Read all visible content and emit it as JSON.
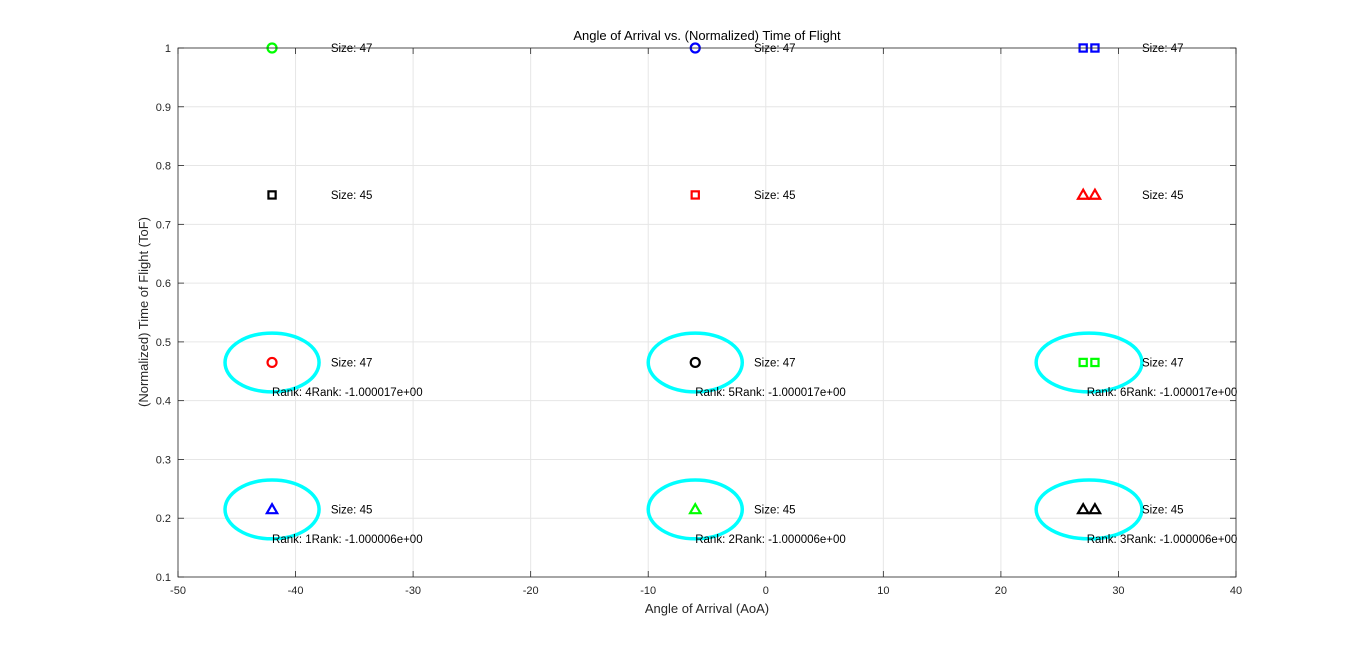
{
  "chart_data": {
    "type": "scatter",
    "title": "Angle of Arrival vs. (Normalized) Time of Flight",
    "xlabel": "Angle of Arrival (AoA)",
    "ylabel": "(Normalized) Time of Flight (ToF)",
    "xlim": [
      -50,
      40
    ],
    "ylim": [
      0.1,
      1
    ],
    "xticks": [
      -50,
      -40,
      -30,
      -20,
      -10,
      0,
      10,
      20,
      30,
      40
    ],
    "xtick_labels": [
      "-50",
      "-40",
      "-30",
      "-20",
      "-10",
      "0",
      "10",
      "20",
      "30",
      "40"
    ],
    "yticks": [
      0.1,
      0.2,
      0.3,
      0.4,
      0.5,
      0.6,
      0.7,
      0.8,
      0.9,
      1
    ],
    "ytick_labels": [
      "0.1",
      "0.2",
      "0.3",
      "0.4",
      "0.5",
      "0.6",
      "0.7",
      "0.8",
      "0.9",
      "1"
    ],
    "grid": true,
    "legend": "none",
    "points": [
      {
        "x": -42,
        "y": 1.0,
        "marker": "circle",
        "color": "#00ff00"
      },
      {
        "x": -42,
        "y": 0.75,
        "marker": "square",
        "color": "#000000"
      },
      {
        "x": -42,
        "y": 0.465,
        "marker": "circle",
        "color": "#ff0000"
      },
      {
        "x": -42,
        "y": 0.215,
        "marker": "triangle",
        "color": "#0000ff"
      },
      {
        "x": -6,
        "y": 1.0,
        "marker": "circle",
        "color": "#0000ff"
      },
      {
        "x": -6,
        "y": 0.75,
        "marker": "square",
        "color": "#ff0000"
      },
      {
        "x": -6,
        "y": 0.465,
        "marker": "circle",
        "color": "#000000"
      },
      {
        "x": -6,
        "y": 0.215,
        "marker": "triangle",
        "color": "#00ff00"
      },
      {
        "x": 27,
        "y": 1.0,
        "marker": "square",
        "color": "#0000ff"
      },
      {
        "x": 28,
        "y": 1.0,
        "marker": "square",
        "color": "#0000ff"
      },
      {
        "x": 27,
        "y": 0.75,
        "marker": "triangle",
        "color": "#ff0000"
      },
      {
        "x": 28,
        "y": 0.75,
        "marker": "triangle",
        "color": "#ff0000"
      },
      {
        "x": 27,
        "y": 0.465,
        "marker": "square",
        "color": "#00ff00"
      },
      {
        "x": 28,
        "y": 0.465,
        "marker": "square",
        "color": "#00ff00"
      },
      {
        "x": 27,
        "y": 0.215,
        "marker": "triangle",
        "color": "#000000"
      },
      {
        "x": 28,
        "y": 0.215,
        "marker": "triangle",
        "color": "#000000"
      }
    ],
    "size_labels": [
      {
        "x": -37,
        "y": 1.0,
        "text": "Size: 47"
      },
      {
        "x": -37,
        "y": 0.75,
        "text": "Size: 45"
      },
      {
        "x": -37,
        "y": 0.465,
        "text": "Size: 47"
      },
      {
        "x": -37,
        "y": 0.215,
        "text": "Size: 45"
      },
      {
        "x": -1,
        "y": 1.0,
        "text": "Size: 47"
      },
      {
        "x": -1,
        "y": 0.75,
        "text": "Size: 45"
      },
      {
        "x": -1,
        "y": 0.465,
        "text": "Size: 47"
      },
      {
        "x": -1,
        "y": 0.215,
        "text": "Size: 45"
      },
      {
        "x": 32,
        "y": 1.0,
        "text": "Size: 47"
      },
      {
        "x": 32,
        "y": 0.75,
        "text": "Size: 45"
      },
      {
        "x": 32,
        "y": 0.465,
        "text": "Size: 47"
      },
      {
        "x": 32,
        "y": 0.215,
        "text": "Size: 45"
      }
    ],
    "rank_labels": [
      {
        "x": -42,
        "y": 0.415,
        "text": "Rank: 4Rank: -1.000017e+00"
      },
      {
        "x": -6,
        "y": 0.415,
        "text": "Rank: 5Rank: -1.000017e+00"
      },
      {
        "x": 27.3,
        "y": 0.415,
        "text": "Rank: 6Rank: -1.000017e+00"
      },
      {
        "x": -42,
        "y": 0.165,
        "text": "Rank: 1Rank: -1.000006e+00"
      },
      {
        "x": -6,
        "y": 0.165,
        "text": "Rank: 2Rank: -1.000006e+00"
      },
      {
        "x": 27.3,
        "y": 0.165,
        "text": "Rank: 3Rank: -1.000006e+00"
      }
    ],
    "highlight_ellipses": [
      {
        "cx": -42,
        "cy": 0.465,
        "rx": 4,
        "ry": 0.05,
        "color": "#00ffff"
      },
      {
        "cx": -6,
        "cy": 0.465,
        "rx": 4,
        "ry": 0.05,
        "color": "#00ffff"
      },
      {
        "cx": 27.5,
        "cy": 0.465,
        "rx": 4.5,
        "ry": 0.05,
        "color": "#00ffff"
      },
      {
        "cx": -42,
        "cy": 0.215,
        "rx": 4,
        "ry": 0.05,
        "color": "#00ffff"
      },
      {
        "cx": -6,
        "cy": 0.215,
        "rx": 4,
        "ry": 0.05,
        "color": "#00ffff"
      },
      {
        "cx": 27.5,
        "cy": 0.215,
        "rx": 4.5,
        "ry": 0.05,
        "color": "#00ffff"
      }
    ]
  }
}
